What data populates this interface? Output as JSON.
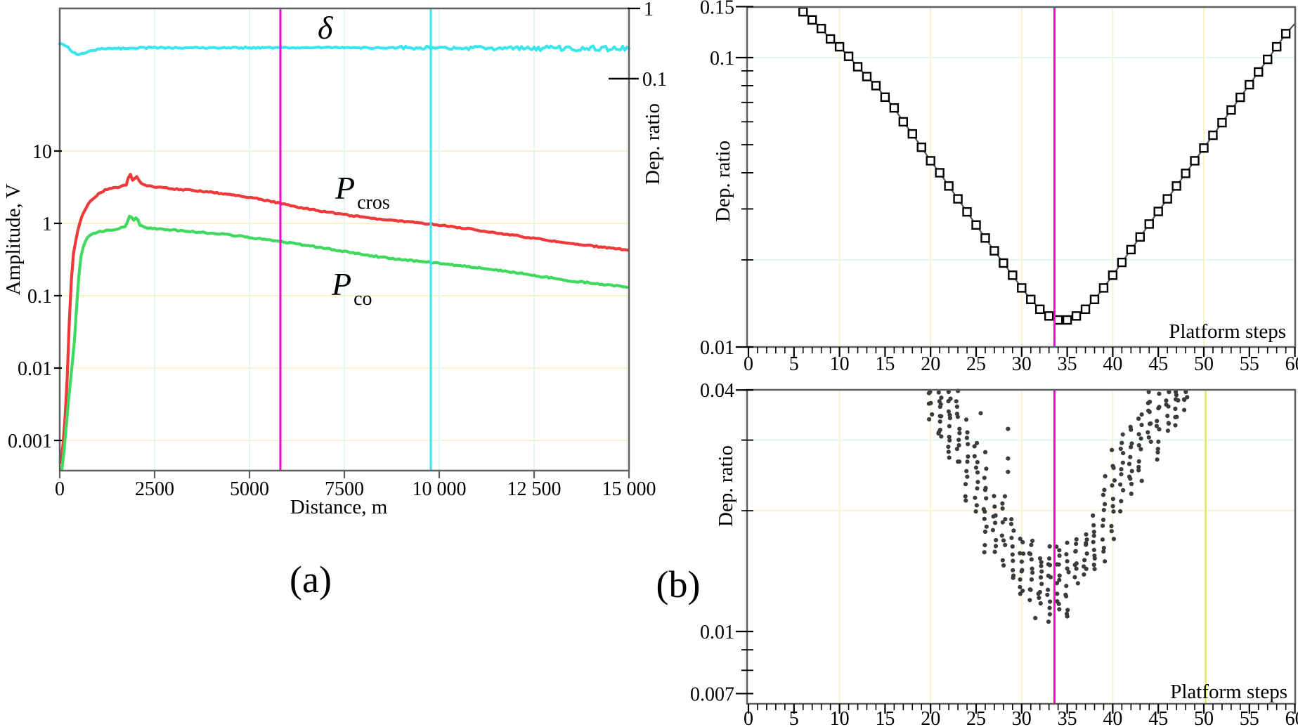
{
  "colors": {
    "frame": "#5f5f5f",
    "red": "#ee3a3a",
    "green": "#3fd95f",
    "cyan": "#38e6ee",
    "magenta": "#ff00dc",
    "yellow_line": "#e6e65a",
    "grid_yellow": "#f7f3cb",
    "grid_cyan": "#e3f4f6",
    "dot": "#3b3b3b",
    "marker_line": "#4a4a4a"
  },
  "chart_data": [
    {
      "id": "panel_a",
      "type": "line",
      "caption": "(a)",
      "xlabel": "Distance, m",
      "ylabel": "Amplitude, V",
      "ylabel_right": "Dep. ratio",
      "xlim": [
        0,
        15000
      ],
      "ylim_left_log": [
        0.0004,
        900
      ],
      "ylim_right_top": 1,
      "x_ticks": [
        {
          "v": 0,
          "label": "0"
        },
        {
          "v": 2500,
          "label": "2500"
        },
        {
          "v": 5000,
          "label": "5000"
        },
        {
          "v": 7500,
          "label": "7500"
        },
        {
          "v": 10000,
          "label": "10 000"
        },
        {
          "v": 12500,
          "label": "12 500"
        },
        {
          "v": 15000,
          "label": "15 000"
        }
      ],
      "y_ticks_left": [
        {
          "v": 10,
          "label": "10"
        },
        {
          "v": 1,
          "label": "1"
        },
        {
          "v": 0.1,
          "label": "0.1"
        },
        {
          "v": 0.01,
          "label": "0.01"
        },
        {
          "v": 0.001,
          "label": "0.001"
        }
      ],
      "y_ticks_right": [
        {
          "v": 1,
          "label": "1"
        },
        {
          "v": 0.1,
          "label": "0.1"
        }
      ],
      "vline_magenta_m": 5815,
      "vline_cyan_m": 9778,
      "series": [
        {
          "name": "delta",
          "label": "δ",
          "axis": "right",
          "color_key": "cyan",
          "points": [
            [
              0,
              0.32
            ],
            [
              150,
              0.3
            ],
            [
              300,
              0.25
            ],
            [
              450,
              0.222
            ],
            [
              600,
              0.228
            ],
            [
              800,
              0.248
            ],
            [
              1000,
              0.262
            ],
            [
              1300,
              0.272
            ],
            [
              1600,
              0.27
            ],
            [
              2000,
              0.274
            ],
            [
              2500,
              0.276
            ],
            [
              3000,
              0.274
            ],
            [
              4000,
              0.277
            ],
            [
              5000,
              0.276
            ],
            [
              6000,
              0.277
            ],
            [
              7000,
              0.276
            ],
            [
              8000,
              0.275
            ],
            [
              9000,
              0.276
            ],
            [
              10000,
              0.276
            ],
            [
              10500,
              0.272
            ],
            [
              11000,
              0.274
            ],
            [
              11500,
              0.27
            ],
            [
              12000,
              0.274
            ],
            [
              12500,
              0.269
            ],
            [
              13000,
              0.272
            ],
            [
              13500,
              0.267
            ],
            [
              14000,
              0.272
            ],
            [
              14500,
              0.266
            ],
            [
              15000,
              0.27
            ]
          ]
        },
        {
          "name": "P_cros",
          "label_main": "P",
          "label_sub": "cros",
          "axis": "left",
          "color_key": "red",
          "points": [
            [
              30,
              0.0005
            ],
            [
              100,
              0.001
            ],
            [
              160,
              0.003
            ],
            [
              210,
              0.01
            ],
            [
              250,
              0.04
            ],
            [
              278,
              0.1
            ],
            [
              350,
              0.35
            ],
            [
              463,
              0.76
            ],
            [
              560,
              1.15
            ],
            [
              648,
              1.5
            ],
            [
              780,
              1.95
            ],
            [
              926,
              2.3
            ],
            [
              1050,
              2.6
            ],
            [
              1204,
              2.9
            ],
            [
              1400,
              3.05
            ],
            [
              1600,
              3.2
            ],
            [
              1750,
              3.4
            ],
            [
              1810,
              4.3
            ],
            [
              1870,
              4.9
            ],
            [
              1915,
              3.9
            ],
            [
              1960,
              4.1
            ],
            [
              2030,
              4.35
            ],
            [
              2110,
              3.7
            ],
            [
              2250,
              3.35
            ],
            [
              2500,
              3.2
            ],
            [
              3000,
              3.0
            ],
            [
              3500,
              2.85
            ],
            [
              4000,
              2.7
            ],
            [
              4500,
              2.5
            ],
            [
              5000,
              2.3
            ],
            [
              5500,
              2.05
            ],
            [
              5815,
              1.9
            ],
            [
              6200,
              1.7
            ],
            [
              6500,
              1.6
            ],
            [
              7000,
              1.45
            ],
            [
              7500,
              1.32
            ],
            [
              8000,
              1.22
            ],
            [
              8500,
              1.13
            ],
            [
              9000,
              1.07
            ],
            [
              9778,
              0.98
            ],
            [
              10500,
              0.88
            ],
            [
              11000,
              0.81
            ],
            [
              11500,
              0.74
            ],
            [
              12000,
              0.68
            ],
            [
              12500,
              0.62
            ],
            [
              13000,
              0.57
            ],
            [
              13500,
              0.52
            ],
            [
              14000,
              0.49
            ],
            [
              14500,
              0.455
            ],
            [
              15000,
              0.43
            ]
          ]
        },
        {
          "name": "P_co",
          "label_main": "P",
          "label_sub": "co",
          "axis": "left",
          "color_key": "green",
          "points": [
            [
              60,
              0.0004
            ],
            [
              140,
              0.001
            ],
            [
              220,
              0.003
            ],
            [
              300,
              0.008
            ],
            [
              380,
              0.02
            ],
            [
              460,
              0.09
            ],
            [
              500,
              0.18
            ],
            [
              560,
              0.35
            ],
            [
              650,
              0.55
            ],
            [
              780,
              0.67
            ],
            [
              926,
              0.74
            ],
            [
              1100,
              0.78
            ],
            [
              1300,
              0.81
            ],
            [
              1500,
              0.83
            ],
            [
              1750,
              0.92
            ],
            [
              1810,
              1.15
            ],
            [
              1870,
              1.42
            ],
            [
              1915,
              1.06
            ],
            [
              1960,
              1.12
            ],
            [
              2030,
              1.28
            ],
            [
              2110,
              0.95
            ],
            [
              2250,
              0.88
            ],
            [
              2500,
              0.85
            ],
            [
              3000,
              0.81
            ],
            [
              3500,
              0.77
            ],
            [
              4000,
              0.73
            ],
            [
              4500,
              0.69
            ],
            [
              5000,
              0.64
            ],
            [
              5500,
              0.59
            ],
            [
              5815,
              0.565
            ],
            [
              6200,
              0.52
            ],
            [
              6500,
              0.5
            ],
            [
              7000,
              0.45
            ],
            [
              7500,
              0.41
            ],
            [
              8000,
              0.37
            ],
            [
              8500,
              0.34
            ],
            [
              9000,
              0.315
            ],
            [
              9778,
              0.29
            ],
            [
              10500,
              0.26
            ],
            [
              11000,
              0.245
            ],
            [
              11500,
              0.225
            ],
            [
              12000,
              0.21
            ],
            [
              12500,
              0.19
            ],
            [
              13000,
              0.175
            ],
            [
              13500,
              0.16
            ],
            [
              14000,
              0.15
            ],
            [
              14500,
              0.14
            ],
            [
              15000,
              0.13
            ]
          ]
        }
      ]
    },
    {
      "id": "panel_b_top",
      "type": "line-markers",
      "caption": "(b)",
      "xlabel": "Platform steps",
      "ylabel": "Dep. ratio",
      "xlim": [
        0,
        60
      ],
      "ylim_log": [
        0.01,
        0.15
      ],
      "x_tick_labels": [
        "0",
        "5",
        "10",
        "15",
        "20",
        "25",
        "30",
        "35",
        "40",
        "45",
        "50",
        "55",
        "60"
      ],
      "x_tick_major_step": 5,
      "x_tick_minor_step": 1,
      "y_ticks": [
        {
          "v": 0.15,
          "label": "0.15"
        },
        {
          "v": 0.1,
          "label": "0.1"
        },
        {
          "v": 0.01,
          "label": "0.01"
        }
      ],
      "y_minor_ticks": [
        0.02,
        0.03,
        0.04,
        0.05,
        0.06,
        0.07,
        0.08,
        0.09
      ],
      "vline_magenta_step": 33.6,
      "series": {
        "name": "deposition_ratio_vs_steps",
        "marker": "square",
        "step_start": 6,
        "values": [
          0.144,
          0.135,
          0.126,
          0.116,
          0.109,
          0.101,
          0.093,
          0.086,
          0.08,
          0.073,
          0.067,
          0.06,
          0.0545,
          0.049,
          0.044,
          0.04,
          0.036,
          0.0325,
          0.0293,
          0.0264,
          0.0238,
          0.0215,
          0.0195,
          0.0177,
          0.016,
          0.0146,
          0.0135,
          0.0128,
          0.0124,
          0.0124,
          0.0128,
          0.0135,
          0.0146,
          0.016,
          0.0177,
          0.0196,
          0.0217,
          0.024,
          0.0266,
          0.0294,
          0.0325,
          0.036,
          0.0398,
          0.044,
          0.0487,
          0.0539,
          0.0596,
          0.0659,
          0.0729,
          0.0806,
          0.0892,
          0.0986,
          0.109,
          0.121
        ],
        "line_end": [
          60,
          0.131
        ]
      }
    },
    {
      "id": "panel_b_bottom",
      "type": "scatter",
      "xlabel": "Platform steps",
      "ylabel": "Dep. ratio",
      "xlim": [
        0,
        60
      ],
      "ylim_log": [
        0.0066,
        0.04
      ],
      "x_tick_labels": [
        "0",
        "5",
        "10",
        "15",
        "20",
        "25",
        "30",
        "35",
        "40",
        "45",
        "50",
        "55",
        "60"
      ],
      "x_tick_major_step": 5,
      "x_tick_minor_step": 1,
      "y_ticks": [
        {
          "v": 0.04,
          "label": "0.04"
        },
        {
          "v": 0.01,
          "label": "0.01"
        },
        {
          "v": 0.007,
          "label": "0.007"
        }
      ],
      "y_minor_ticks": [
        0.03,
        0.02,
        0.009,
        0.008
      ],
      "vline_magenta_step": 33.6,
      "vline_yellow_step": 50.2,
      "clusters": [
        {
          "step": 20,
          "lo": 0.034,
          "hi": 0.04,
          "n": 6
        },
        {
          "step": 21,
          "lo": 0.03,
          "hi": 0.04,
          "n": 12
        },
        {
          "step": 22,
          "lo": 0.027,
          "hi": 0.04,
          "n": 12
        },
        {
          "step": 23,
          "lo": 0.026,
          "hi": 0.038,
          "n": 11
        },
        {
          "step": 24,
          "lo": 0.021,
          "hi": 0.033,
          "n": 11
        },
        {
          "step": 25,
          "lo": 0.02,
          "hi": 0.03,
          "n": 11
        },
        {
          "step": 26,
          "lo": 0.016,
          "hi": 0.025,
          "n": 12
        },
        {
          "step": 27,
          "lo": 0.0157,
          "hi": 0.0214,
          "n": 9
        },
        {
          "step": 28,
          "lo": 0.0147,
          "hi": 0.022,
          "n": 10
        },
        {
          "step": 29,
          "lo": 0.0133,
          "hi": 0.0192,
          "n": 10
        },
        {
          "step": 30,
          "lo": 0.0122,
          "hi": 0.017,
          "n": 11
        },
        {
          "step": 31,
          "lo": 0.0121,
          "hi": 0.017,
          "n": 11
        },
        {
          "step": 32,
          "lo": 0.0115,
          "hi": 0.0153,
          "n": 10
        },
        {
          "step": 33,
          "lo": 0.0108,
          "hi": 0.016,
          "n": 12
        },
        {
          "step": 34,
          "lo": 0.0112,
          "hi": 0.0166,
          "n": 12
        },
        {
          "step": 35,
          "lo": 0.011,
          "hi": 0.0165,
          "n": 10
        },
        {
          "step": 36,
          "lo": 0.0132,
          "hi": 0.0171,
          "n": 9
        },
        {
          "step": 37,
          "lo": 0.0139,
          "hi": 0.0177,
          "n": 9
        },
        {
          "step": 38,
          "lo": 0.0141,
          "hi": 0.0192,
          "n": 10
        },
        {
          "step": 39,
          "lo": 0.015,
          "hi": 0.0239,
          "n": 11
        },
        {
          "step": 40,
          "lo": 0.0168,
          "hi": 0.0278,
          "n": 11
        },
        {
          "step": 41,
          "lo": 0.0203,
          "hi": 0.0314,
          "n": 11
        },
        {
          "step": 42,
          "lo": 0.022,
          "hi": 0.0324,
          "n": 11
        },
        {
          "step": 43,
          "lo": 0.0242,
          "hi": 0.0354,
          "n": 11
        },
        {
          "step": 44,
          "lo": 0.0296,
          "hi": 0.0391,
          "n": 10
        },
        {
          "step": 45,
          "lo": 0.0263,
          "hi": 0.0387,
          "n": 10
        },
        {
          "step": 46,
          "lo": 0.0317,
          "hi": 0.04,
          "n": 9
        },
        {
          "step": 47,
          "lo": 0.033,
          "hi": 0.04,
          "n": 8
        },
        {
          "step": 48,
          "lo": 0.036,
          "hi": 0.04,
          "n": 5
        }
      ],
      "outliers": [
        [
          25.5,
          0.035
        ],
        [
          28.5,
          0.032
        ],
        [
          28.5,
          0.027
        ],
        [
          28.5,
          0.025
        ],
        [
          31.5,
          0.0108
        ],
        [
          35,
          0.0109
        ],
        [
          23,
          0.0398
        ],
        [
          26,
          0.028
        ]
      ]
    }
  ]
}
